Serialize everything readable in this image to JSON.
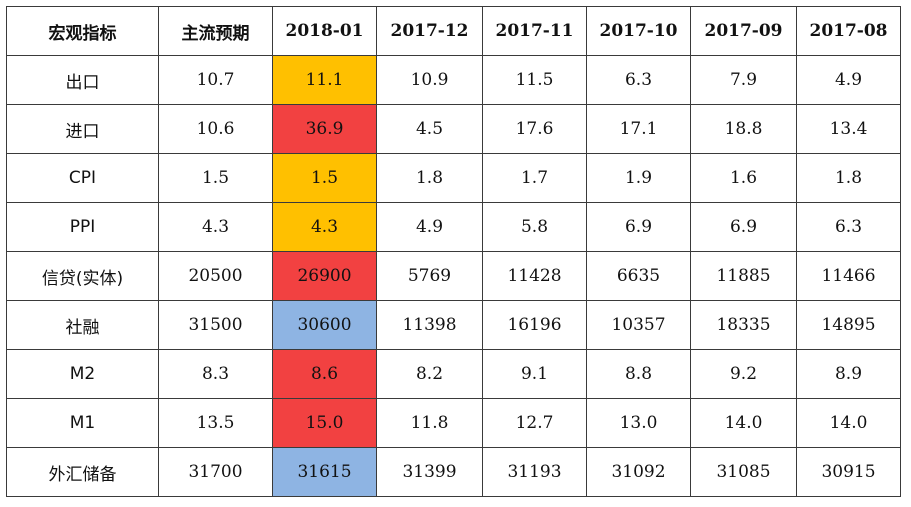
{
  "headers": [
    "宏观指标",
    "主流预期",
    "2018-01",
    "2017-12",
    "2017-11",
    "2017-10",
    "2017-09",
    "2017-08"
  ],
  "highlight_colors": {
    "orange": "#FFC000",
    "red": "#F24141",
    "blue": "#8EB4E3"
  },
  "rows": [
    {
      "indicator": "出口",
      "expected": "10.7",
      "current": "11.1",
      "highlight": "orange",
      "history": [
        "10.9",
        "11.5",
        "6.3",
        "7.9",
        "4.9"
      ]
    },
    {
      "indicator": "进口",
      "expected": "10.6",
      "current": "36.9",
      "highlight": "red",
      "history": [
        "4.5",
        "17.6",
        "17.1",
        "18.8",
        "13.4"
      ]
    },
    {
      "indicator": "CPI",
      "expected": "1.5",
      "current": "1.5",
      "highlight": "orange",
      "history": [
        "1.8",
        "1.7",
        "1.9",
        "1.6",
        "1.8"
      ]
    },
    {
      "indicator": "PPI",
      "expected": "4.3",
      "current": "4.3",
      "highlight": "orange",
      "history": [
        "4.9",
        "5.8",
        "6.9",
        "6.9",
        "6.3"
      ]
    },
    {
      "indicator": "信贷(实体)",
      "expected": "20500",
      "current": "26900",
      "highlight": "red",
      "history": [
        "5769",
        "11428",
        "6635",
        "11885",
        "11466"
      ]
    },
    {
      "indicator": "社融",
      "expected": "31500",
      "current": "30600",
      "highlight": "blue",
      "history": [
        "11398",
        "16196",
        "10357",
        "18335",
        "14895"
      ]
    },
    {
      "indicator": "M2",
      "expected": "8.3",
      "current": "8.6",
      "highlight": "red",
      "history": [
        "8.2",
        "9.1",
        "8.8",
        "9.2",
        "8.9"
      ]
    },
    {
      "indicator": "M1",
      "expected": "13.5",
      "current": "15.0",
      "highlight": "red",
      "history": [
        "11.8",
        "12.7",
        "13.0",
        "14.0",
        "14.0"
      ]
    },
    {
      "indicator": "外汇储备",
      "expected": "31700",
      "current": "31615",
      "highlight": "blue",
      "history": [
        "31399",
        "31193",
        "31092",
        "31085",
        "30915"
      ]
    }
  ]
}
